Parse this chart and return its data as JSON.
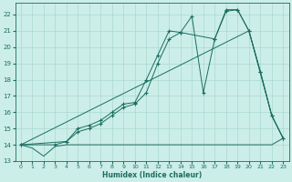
{
  "xlabel": "Humidex (Indice chaleur)",
  "bg_color": "#cceee8",
  "grid_color": "#aad8d0",
  "line_color": "#1a6e60",
  "xlim": [
    -0.5,
    23.5
  ],
  "ylim": [
    13.0,
    22.7
  ],
  "yticks": [
    13,
    14,
    15,
    16,
    17,
    18,
    19,
    20,
    21,
    22
  ],
  "xticks": [
    0,
    1,
    2,
    3,
    4,
    5,
    6,
    7,
    8,
    9,
    10,
    11,
    12,
    13,
    14,
    15,
    16,
    17,
    18,
    19,
    20,
    21,
    22,
    23
  ],
  "series": [
    {
      "x": [
        0,
        1,
        2,
        3,
        4,
        5,
        6,
        7,
        8,
        9,
        10,
        11,
        12,
        13,
        14,
        15,
        16,
        17,
        18,
        19,
        20,
        21,
        22,
        23
      ],
      "y": [
        14.0,
        13.8,
        13.3,
        13.9,
        14.0,
        14.0,
        14.0,
        14.0,
        14.0,
        14.0,
        14.0,
        14.0,
        14.0,
        14.0,
        14.0,
        14.0,
        14.0,
        14.0,
        14.0,
        14.0,
        14.0,
        14.0,
        14.0,
        14.4
      ],
      "marker": false
    },
    {
      "x": [
        0,
        20,
        22,
        23
      ],
      "y": [
        14.0,
        21.0,
        15.8,
        14.4
      ],
      "marker": false
    },
    {
      "x": [
        0,
        3,
        4,
        5,
        6,
        7,
        8,
        9,
        10,
        11,
        12,
        13,
        14,
        15,
        16,
        17,
        18,
        19,
        20,
        21,
        22,
        23
      ],
      "y": [
        14.0,
        14.0,
        14.2,
        15.0,
        15.2,
        15.5,
        16.0,
        16.5,
        16.6,
        18.0,
        19.5,
        21.0,
        20.9,
        21.9,
        17.2,
        20.5,
        22.3,
        22.3,
        21.0,
        18.5,
        15.8,
        14.4
      ],
      "marker": true
    },
    {
      "x": [
        0,
        4,
        5,
        6,
        7,
        8,
        9,
        10,
        11,
        12,
        13,
        14,
        17,
        18,
        19,
        20,
        21,
        22,
        23
      ],
      "y": [
        14.0,
        14.2,
        14.8,
        15.0,
        15.3,
        15.8,
        16.3,
        16.5,
        17.2,
        19.0,
        20.5,
        20.9,
        20.5,
        22.2,
        22.3,
        21.0,
        18.5,
        15.8,
        14.4
      ],
      "marker": true
    }
  ]
}
